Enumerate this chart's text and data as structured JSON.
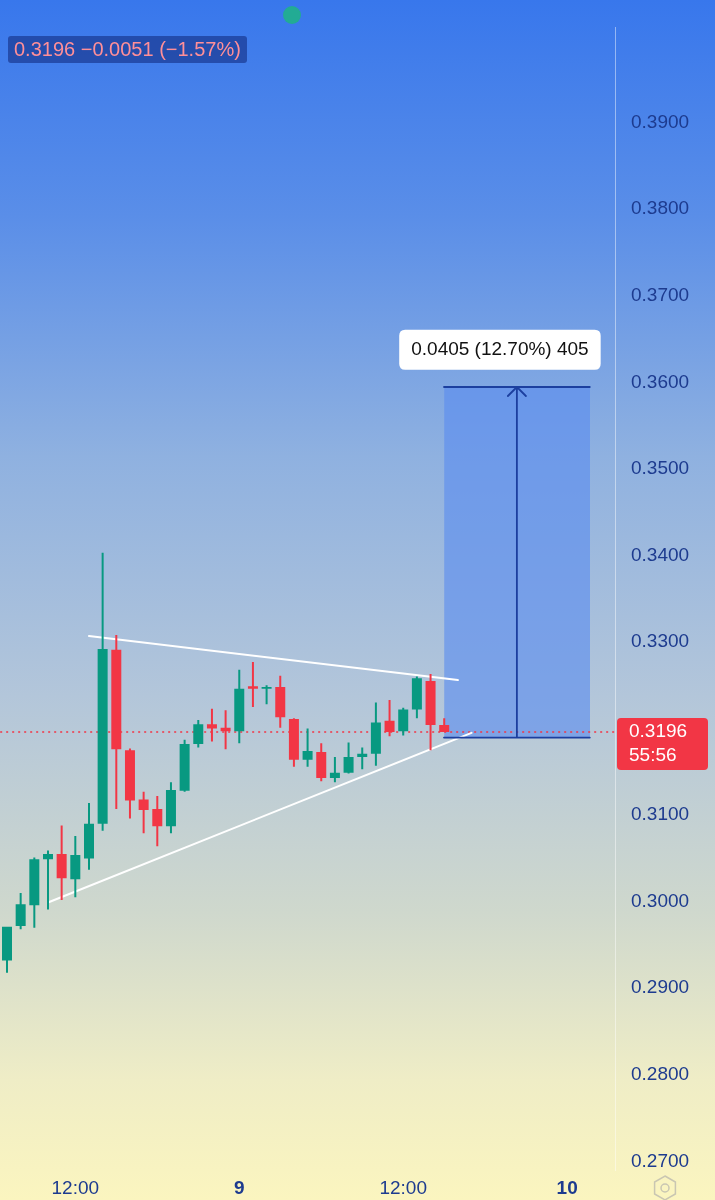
{
  "chart_data": {
    "type": "candlestick",
    "subtitle": "0.3196 −0.0051 (−1.57%)",
    "categories": [
      null,
      null,
      null,
      null,
      null,
      "12:00",
      null,
      null,
      null,
      null,
      null,
      null,
      null,
      null,
      null,
      null,
      null,
      "9",
      null,
      null,
      null,
      null,
      null,
      null,
      null,
      null,
      null,
      null,
      null,
      "12:00",
      null,
      null,
      null,
      null,
      null,
      null,
      null,
      null,
      null,
      null,
      null,
      "10",
      null,
      null,
      null
    ],
    "ohlc": [
      [
        0.2932,
        0.2971,
        0.2918,
        0.2971
      ],
      [
        0.2972,
        0.301,
        0.2968,
        0.2997
      ],
      [
        0.2996,
        0.3051,
        0.297,
        0.3049
      ],
      [
        0.3049,
        0.3059,
        0.2991,
        0.3055
      ],
      [
        0.3055,
        0.3088,
        0.3002,
        0.3027
      ],
      [
        0.3026,
        0.3076,
        0.3005,
        0.3054
      ],
      [
        0.305,
        0.3114,
        0.3037,
        0.309
      ],
      [
        0.309,
        0.3403,
        0.3082,
        0.3292
      ],
      [
        0.3291,
        0.3308,
        0.3107,
        0.3176
      ],
      [
        0.3175,
        0.3177,
        0.3096,
        0.3117
      ],
      [
        0.3118,
        0.3127,
        0.3079,
        0.3106
      ],
      [
        0.3107,
        0.3122,
        0.3064,
        0.3087
      ],
      [
        0.3087,
        0.3138,
        0.3079,
        0.3129
      ],
      [
        0.3128,
        0.3187,
        0.3127,
        0.3182
      ],
      [
        0.3182,
        0.321,
        0.3178,
        0.3205
      ],
      [
        0.3205,
        0.3223,
        0.3185,
        0.32
      ],
      [
        0.3201,
        0.3221,
        0.3176,
        0.3197
      ],
      [
        0.3197,
        0.3268,
        0.3183,
        0.3246
      ],
      [
        0.3249,
        0.3277,
        0.3225,
        0.3246
      ],
      [
        0.3246,
        0.325,
        0.3228,
        0.3248
      ],
      [
        0.3248,
        0.3261,
        0.3201,
        0.3213
      ],
      [
        0.3211,
        0.3212,
        0.3156,
        0.3164
      ],
      [
        0.3164,
        0.32,
        0.3156,
        0.3174
      ],
      [
        0.3173,
        0.3183,
        0.3139,
        0.3143
      ],
      [
        0.3143,
        0.3167,
        0.3138,
        0.3149
      ],
      [
        0.3149,
        0.3184,
        0.3148,
        0.3167
      ],
      [
        0.3167,
        0.3178,
        0.3153,
        0.3171
      ],
      [
        0.3171,
        0.323,
        0.3157,
        0.3207
      ],
      [
        0.3209,
        0.3233,
        0.3191,
        0.3196
      ],
      [
        0.3197,
        0.3224,
        0.3192,
        0.3222
      ],
      [
        0.3222,
        0.326,
        0.3212,
        0.3258
      ],
      [
        0.3255,
        0.3263,
        0.3175,
        0.3204
      ],
      [
        0.3204,
        0.3212,
        0.3196,
        0.3196
      ],
      null,
      null,
      null,
      null,
      null,
      null,
      null,
      null,
      null,
      null,
      null,
      null
    ],
    "colors": [
      "#089981",
      "#089981",
      "#089981",
      "#089981",
      "#f23645",
      "#089981",
      "#089981",
      "#089981",
      "#f23645",
      "#f23645",
      "#f23645",
      "#f23645",
      "#089981",
      "#089981",
      "#089981",
      "#f23645",
      "#f23645",
      "#089981",
      "#f23645",
      "#089981",
      "#f23645",
      "#f23645",
      "#089981",
      "#f23645",
      "#089981",
      "#089981",
      "#089981",
      "#089981",
      "#f23645",
      "#089981",
      "#089981",
      "#f23645",
      "#f23645",
      null,
      null,
      null,
      null,
      null,
      null,
      null,
      null,
      null,
      null,
      null,
      null
    ],
    "series": [
      {
        "type": "line",
        "values": [
          null,
          null,
          null,
          null,
          null,
          null,
          0.3307,
          null,
          null,
          null,
          null,
          null,
          null,
          null,
          null,
          null,
          null,
          null,
          null,
          null,
          null,
          null,
          null,
          null,
          null,
          null,
          null,
          null,
          null,
          null,
          null,
          null,
          null,
          0.3256,
          null,
          null,
          null,
          null,
          null,
          null,
          null,
          null,
          null,
          null,
          null
        ],
        "color": "#ffffff"
      },
      {
        "type": "line",
        "values": [
          null,
          null,
          null,
          0.2999,
          null,
          null,
          null,
          null,
          null,
          null,
          null,
          null,
          null,
          null,
          null,
          null,
          null,
          null,
          null,
          null,
          null,
          null,
          null,
          null,
          null,
          null,
          null,
          null,
          null,
          null,
          null,
          null,
          null,
          null,
          0.3195,
          null,
          null,
          null,
          null,
          null,
          null,
          null,
          null,
          null,
          null
        ],
        "color": "#ffffff"
      }
    ],
    "ylim": [
      0.269,
      0.401
    ],
    "yticks": [
      {
        "value": 0.27,
        "label": "0.2700"
      },
      {
        "value": 0.28,
        "label": "0.2800"
      },
      {
        "value": 0.29,
        "label": "0.2900"
      },
      {
        "value": 0.3,
        "label": "0.3000"
      },
      {
        "value": 0.31,
        "label": "0.3100"
      },
      {
        "value": 0.33,
        "label": "0.3300"
      },
      {
        "value": 0.34,
        "label": "0.3400"
      },
      {
        "value": 0.35,
        "label": "0.3500"
      },
      {
        "value": 0.36,
        "label": "0.3600"
      },
      {
        "value": 0.37,
        "label": "0.3700"
      },
      {
        "value": 0.38,
        "label": "0.3800"
      },
      {
        "value": 0.39,
        "label": "0.3900"
      }
    ],
    "ref_lines": [
      {
        "axis": "y",
        "value": 0.3196,
        "label": "0.3196\n55:56",
        "color": "#f23645",
        "line_style": "dotted"
      }
    ],
    "bands": [
      {
        "axis": "y",
        "from": 0.319,
        "to": 0.3595,
        "label": "0.0405 (12.70%) 405",
        "color": "#5b8def"
      }
    ]
  }
}
